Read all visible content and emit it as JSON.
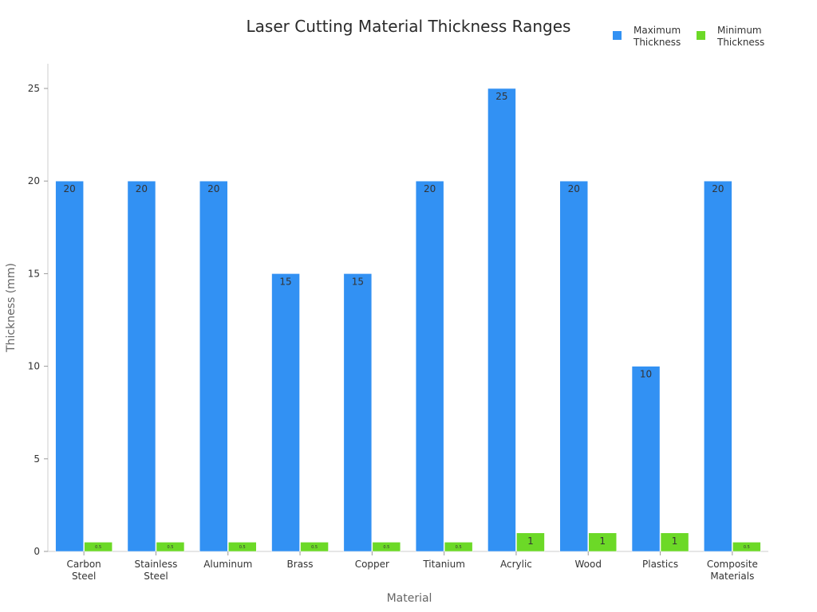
{
  "chart_data": {
    "type": "bar",
    "title": "Laser Cutting Material Thickness Ranges",
    "xlabel": "Material",
    "ylabel": "Thickness (mm)",
    "ylim": [
      0,
      26
    ],
    "yticks": [
      0,
      5,
      10,
      15,
      20,
      25
    ],
    "grid": false,
    "legend_position": "top-right",
    "categories": [
      [
        "Carbon",
        "Steel"
      ],
      [
        "Stainless",
        "Steel"
      ],
      [
        "Aluminum"
      ],
      [
        "Brass"
      ],
      [
        "Copper"
      ],
      [
        "Titanium"
      ],
      [
        "Acrylic"
      ],
      [
        "Wood"
      ],
      [
        "Plastics"
      ],
      [
        "Composite",
        "Materials"
      ]
    ],
    "series": [
      {
        "name": [
          "Maximum",
          "Thickness"
        ],
        "color": "#3291f3",
        "values": [
          20,
          20,
          20,
          15,
          15,
          20,
          25,
          20,
          10,
          20
        ]
      },
      {
        "name": [
          "Minimum",
          "Thickness"
        ],
        "color": "#6cd927",
        "values": [
          0.5,
          0.5,
          0.5,
          0.5,
          0.5,
          0.5,
          1,
          1,
          1,
          0.5
        ]
      }
    ]
  }
}
